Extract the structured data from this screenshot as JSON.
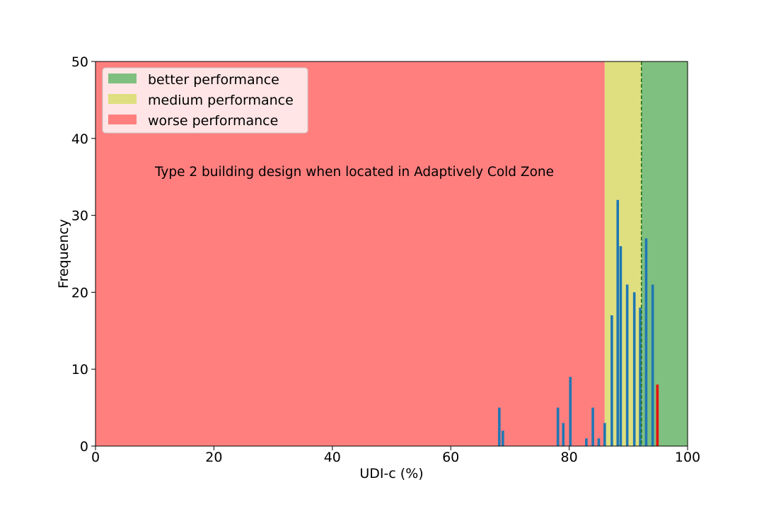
{
  "chart_data": {
    "type": "bar",
    "xlabel": "UDI-c (%)",
    "ylabel": "Frequency",
    "xlim": [
      0,
      100
    ],
    "ylim": [
      0,
      50
    ],
    "xticks": [
      0,
      20,
      40,
      60,
      80,
      100
    ],
    "yticks": [
      0,
      10,
      20,
      30,
      40,
      50
    ],
    "grid": false,
    "legend_position": "top-left",
    "annotation": "Type 2 building design when located in Adaptively Cold Zone",
    "regions": [
      {
        "name": "worse performance",
        "from": 0,
        "to": 86.0,
        "color": "#ff7f7f"
      },
      {
        "name": "medium performance",
        "from": 86.0,
        "to": 92.2,
        "color": "#dfdf7f"
      },
      {
        "name": "better performance",
        "from": 92.2,
        "to": 100,
        "color": "#7fbf7f"
      }
    ],
    "legend": [
      {
        "label": "better performance",
        "color": "#7fbf7f"
      },
      {
        "label": "medium performance",
        "color": "#dfdf7f"
      },
      {
        "label": "worse performance",
        "color": "#ff7f7f"
      }
    ],
    "threshold_line": {
      "x": 92.2,
      "color": "#1a6b1a"
    },
    "series": [
      {
        "color": "#1f77b4",
        "x": [
          68.2,
          68.8,
          78.1,
          79.0,
          80.2,
          82.9,
          84.0,
          85.0,
          86.0,
          87.2,
          88.2,
          88.7,
          89.8,
          91.0,
          92.0,
          93.0,
          94.1
        ],
        "values": [
          5,
          2,
          5,
          3,
          9,
          1,
          5,
          1,
          3,
          17,
          32,
          26,
          21,
          20,
          18,
          27,
          21
        ]
      },
      {
        "color": "#e8120c",
        "x": [
          94.9
        ],
        "values": [
          8
        ]
      }
    ]
  }
}
